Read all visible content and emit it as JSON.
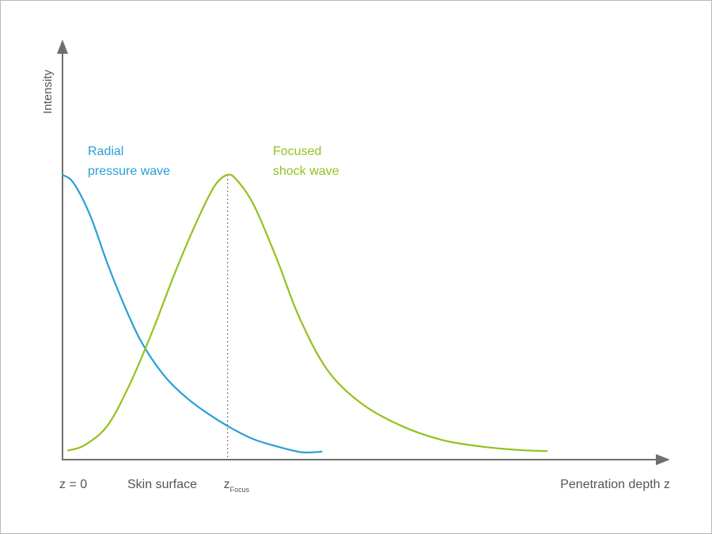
{
  "chart_data": {
    "type": "line",
    "title": "",
    "ylabel": "Intensity",
    "xlabel": "Penetration depth z",
    "x_range": [
      0,
      10
    ],
    "y_range": [
      0,
      1.0
    ],
    "grid": false,
    "legend": "none",
    "x_annotations": {
      "origin": "z = 0",
      "surface": "Skin surface",
      "focus_main": "z",
      "focus_sub": "Focus"
    },
    "focus_x": 2.93,
    "series": [
      {
        "name": "Radial pressure wave",
        "name_lines": [
          "Radial",
          "pressure wave"
        ],
        "color": "#2a9fd6",
        "x": [
          0,
          0.2,
          0.5,
          0.8,
          1.1,
          1.4,
          1.8,
          2.2,
          2.6,
          3.0,
          3.4,
          3.8,
          4.2,
          4.4,
          4.6
        ],
        "y": [
          1.0,
          0.97,
          0.85,
          0.68,
          0.53,
          0.4,
          0.28,
          0.2,
          0.14,
          0.09,
          0.05,
          0.025,
          0.005,
          0.003,
          0.006
        ]
      },
      {
        "name": "Focused shock wave",
        "name_lines": [
          "Focused",
          "shock wave"
        ],
        "color": "#94c11f",
        "x": [
          0.1,
          0.4,
          0.8,
          1.2,
          1.6,
          2.0,
          2.4,
          2.7,
          2.93,
          3.1,
          3.4,
          3.8,
          4.2,
          4.7,
          5.3,
          6.0,
          6.7,
          7.4,
          8.1,
          8.6
        ],
        "y": [
          0.01,
          0.03,
          0.1,
          0.25,
          0.44,
          0.65,
          0.84,
          0.96,
          1.0,
          0.98,
          0.89,
          0.7,
          0.49,
          0.3,
          0.18,
          0.1,
          0.05,
          0.025,
          0.012,
          0.008
        ]
      }
    ]
  },
  "colors": {
    "axis": "#6f6f6f",
    "text": "#555555",
    "focus_line": "#777777"
  }
}
